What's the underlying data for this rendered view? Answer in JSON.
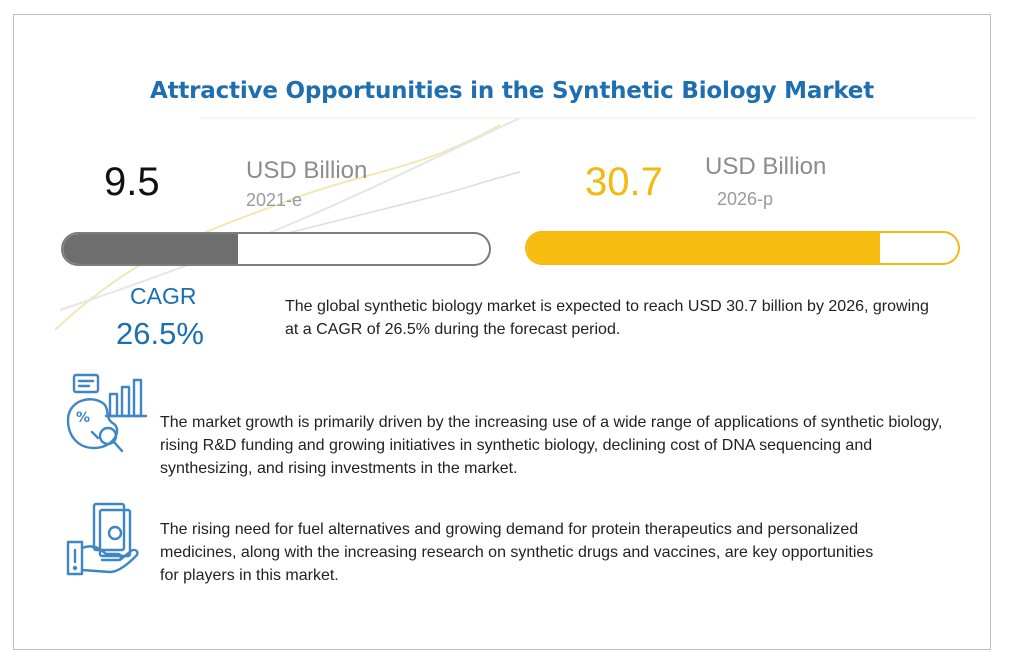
{
  "title": "Attractive Opportunities in the Synthetic Biology Market",
  "left_stat": {
    "value": "9.5",
    "unit": "USD Billion",
    "year": "2021-e",
    "fill_fraction": 0.41
  },
  "right_stat": {
    "value": "30.7",
    "unit": "USD Billion",
    "year": "2026-p",
    "fill_fraction": 0.82
  },
  "cagr": {
    "label": "CAGR",
    "value": "26.5%"
  },
  "summary": "The global synthetic biology market is expected to reach USD 30.7 billion by 2026, growing at a CAGR of 26.5% during the forecast period.",
  "drivers": "The market growth is primarily driven by the increasing use of a wide range of applications of synthetic biology, rising R&D funding and growing initiatives in synthetic biology, declining cost of DNA sequencing and synthesizing, and rising investments in the market.",
  "opportunities": "The rising need for fuel alternatives and growing demand for protein therapeutics and personalized medicines, along with the increasing research on synthetic drugs and vaccines, are key opportunities for players in this market.",
  "colors": {
    "title": "#1e6eb0",
    "accent_yellow": "#f6bd10",
    "bar_gray": "#6e6e6e",
    "icon_blue": "#3f86c4"
  },
  "icons": [
    "analytics-report-icon",
    "money-hand-icon"
  ]
}
